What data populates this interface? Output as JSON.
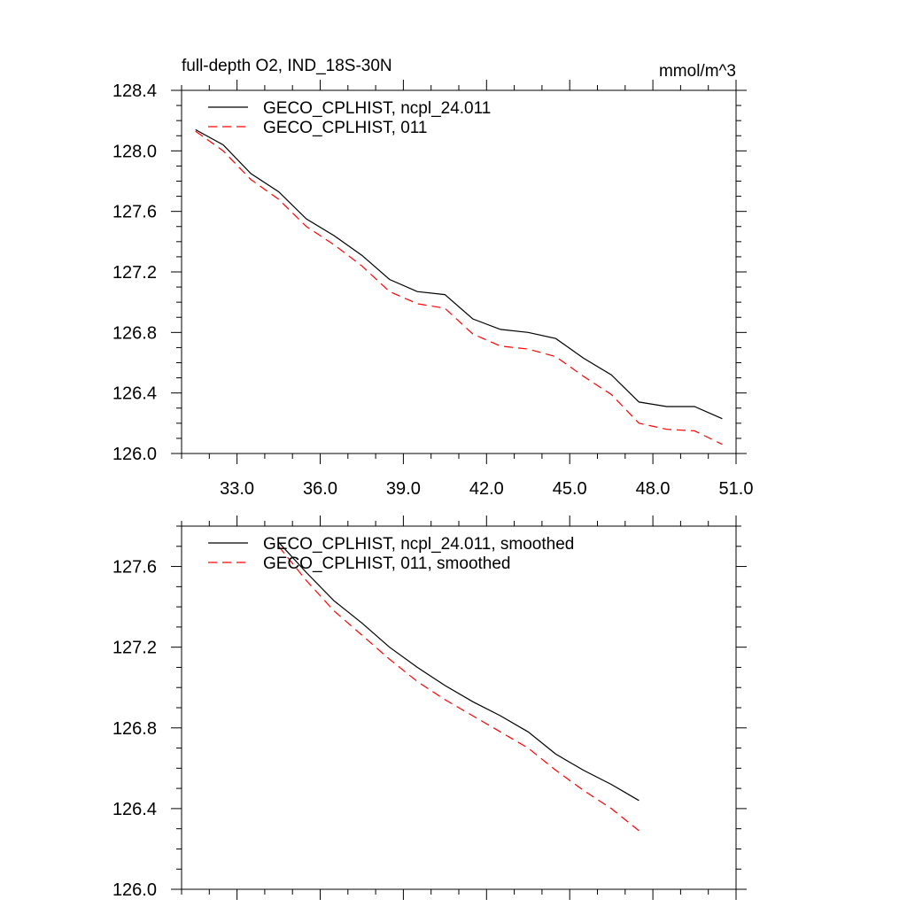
{
  "chart_data": [
    {
      "type": "line",
      "title": "full-depth O2, IND_18S-30N",
      "units": "mmol/m^3",
      "xlabel": "",
      "ylabel": "",
      "xlim": [
        31.0,
        51.0
      ],
      "ylim": [
        126.0,
        128.4
      ],
      "x_ticks": [
        "33.0",
        "36.0",
        "39.0",
        "42.0",
        "45.0",
        "48.0",
        "51.0"
      ],
      "y_ticks": [
        "126.0",
        "126.4",
        "126.8",
        "127.2",
        "127.6",
        "128.0",
        "128.4"
      ],
      "grid": false,
      "legend_position": "top-left",
      "x": [
        31.5,
        32.5,
        33.5,
        34.5,
        35.5,
        36.5,
        37.5,
        38.5,
        39.5,
        40.5,
        41.5,
        42.5,
        43.5,
        44.5,
        45.5,
        46.5,
        47.5,
        48.5,
        49.5,
        50.5
      ],
      "series": [
        {
          "name": "GECO_CPLHIST, ncpl_24.011",
          "color": "#000000",
          "dash": "solid",
          "values": [
            128.14,
            128.04,
            127.85,
            127.73,
            127.55,
            127.44,
            127.31,
            127.15,
            127.07,
            127.05,
            126.89,
            126.82,
            126.8,
            126.76,
            126.63,
            126.52,
            126.34,
            126.31,
            126.31,
            126.23
          ]
        },
        {
          "name": "GECO_CPLHIST, 011",
          "color": "#ff0000",
          "dash": "dashed",
          "values": [
            128.13,
            128.0,
            127.81,
            127.68,
            127.5,
            127.38,
            127.24,
            127.07,
            126.99,
            126.96,
            126.79,
            126.71,
            126.69,
            126.64,
            126.51,
            126.39,
            126.2,
            126.16,
            126.15,
            126.06
          ]
        }
      ]
    },
    {
      "type": "line",
      "title": "",
      "xlabel": "",
      "ylabel": "",
      "xlim": [
        31.0,
        51.0
      ],
      "ylim": [
        126.0,
        127.8
      ],
      "x_ticks": [],
      "y_ticks": [
        "126.0",
        "126.4",
        "126.8",
        "127.2",
        "127.6"
      ],
      "grid": false,
      "legend_position": "top-left",
      "x": [
        34.5,
        35.5,
        36.5,
        37.5,
        38.5,
        39.5,
        40.5,
        41.5,
        42.5,
        43.5,
        44.5,
        45.5,
        46.5,
        47.5
      ],
      "series": [
        {
          "name": "GECO_CPLHIST, ncpl_24.011, smoothed",
          "color": "#000000",
          "dash": "solid",
          "values": [
            127.72,
            127.57,
            127.43,
            127.32,
            127.2,
            127.1,
            127.01,
            126.93,
            126.86,
            126.78,
            126.67,
            126.59,
            126.52,
            126.44
          ]
        },
        {
          "name": "GECO_CPLHIST, 011, smoothed",
          "color": "#ff0000",
          "dash": "dashed",
          "values": [
            127.7,
            127.53,
            127.38,
            127.26,
            127.14,
            127.03,
            126.94,
            126.86,
            126.78,
            126.7,
            126.59,
            126.49,
            126.4,
            126.29
          ]
        }
      ]
    }
  ]
}
